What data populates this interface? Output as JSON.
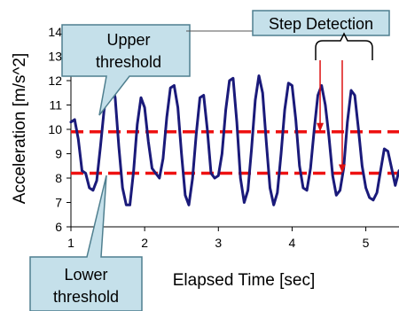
{
  "chart_data": {
    "type": "line",
    "title": "",
    "xlabel": "Elapsed Time [sec]",
    "ylabel": "Acceleration [m/s^2]",
    "xlim": [
      1,
      5.45
    ],
    "ylim": [
      6,
      14
    ],
    "x_ticks": [
      "1",
      "2",
      "3",
      "4",
      "5"
    ],
    "y_ticks": [
      "6",
      "7",
      "8",
      "9",
      "10",
      "11",
      "12",
      "13",
      "14"
    ],
    "grid": false,
    "series": [
      {
        "x": [
          1.0,
          1.05,
          1.1,
          1.15,
          1.2,
          1.25,
          1.3,
          1.35,
          1.4,
          1.45,
          1.5,
          1.55,
          1.6,
          1.65,
          1.7,
          1.75,
          1.8,
          1.85,
          1.9,
          1.95,
          2.0,
          2.05,
          2.1,
          2.15,
          2.2,
          2.25,
          2.3,
          2.35,
          2.4,
          2.45,
          2.5,
          2.55,
          2.6,
          2.65,
          2.7,
          2.75,
          2.8,
          2.85,
          2.9,
          2.95,
          3.0,
          3.05,
          3.1,
          3.15,
          3.2,
          3.25,
          3.3,
          3.35,
          3.4,
          3.45,
          3.5,
          3.55,
          3.6,
          3.65,
          3.7,
          3.75,
          3.8,
          3.85,
          3.9,
          3.95,
          4.0,
          4.05,
          4.1,
          4.15,
          4.2,
          4.25,
          4.3,
          4.35,
          4.4,
          4.45,
          4.5,
          4.55,
          4.6,
          4.65,
          4.7,
          4.75,
          4.8,
          4.85,
          4.9,
          4.95,
          5.0,
          5.05,
          5.1,
          5.15,
          5.2,
          5.25,
          5.3,
          5.35,
          5.4,
          5.45
        ],
        "y": [
          10.3,
          10.4,
          9.6,
          8.3,
          8.2,
          7.6,
          7.5,
          7.9,
          9.3,
          10.8,
          11.7,
          12.0,
          11.3,
          9.3,
          7.6,
          6.9,
          6.9,
          8.3,
          10.2,
          11.3,
          10.9,
          9.5,
          8.4,
          8.2,
          8.0,
          8.8,
          10.5,
          11.7,
          11.8,
          10.9,
          9.0,
          7.3,
          6.9,
          8.0,
          9.8,
          11.3,
          11.4,
          10.0,
          8.2,
          8.0,
          8.1,
          9.0,
          10.8,
          12.0,
          12.1,
          10.3,
          8.0,
          7.0,
          7.5,
          9.2,
          11.2,
          12.2,
          11.5,
          9.5,
          7.6,
          6.9,
          7.4,
          9.0,
          10.8,
          11.9,
          11.8,
          10.4,
          8.5,
          7.6,
          7.5,
          8.4,
          10.0,
          11.4,
          11.8,
          11.0,
          9.7,
          8.1,
          7.3,
          7.5,
          8.4,
          10.3,
          11.6,
          11.4,
          10.0,
          8.5,
          7.6,
          7.2,
          7.1,
          7.4,
          8.3,
          9.2,
          9.1,
          8.4,
          7.7,
          8.3
        ]
      }
    ],
    "thresholds": [
      {
        "name": "Upper threshold",
        "value": 9.9
      },
      {
        "name": "Lower threshold",
        "value": 8.2
      }
    ],
    "step_detection_markers_x": [
      4.38,
      4.68
    ],
    "annotations": {
      "upper": [
        "Upper",
        "threshold"
      ],
      "lower": [
        "Lower",
        "threshold"
      ],
      "step": "Step Detection"
    },
    "colors": {
      "series": "#1a1a7a",
      "threshold": "#ee1111",
      "marker": "#dd1111",
      "callout_fill": "#c5e0ea",
      "callout_stroke": "#4f7f8f"
    }
  }
}
